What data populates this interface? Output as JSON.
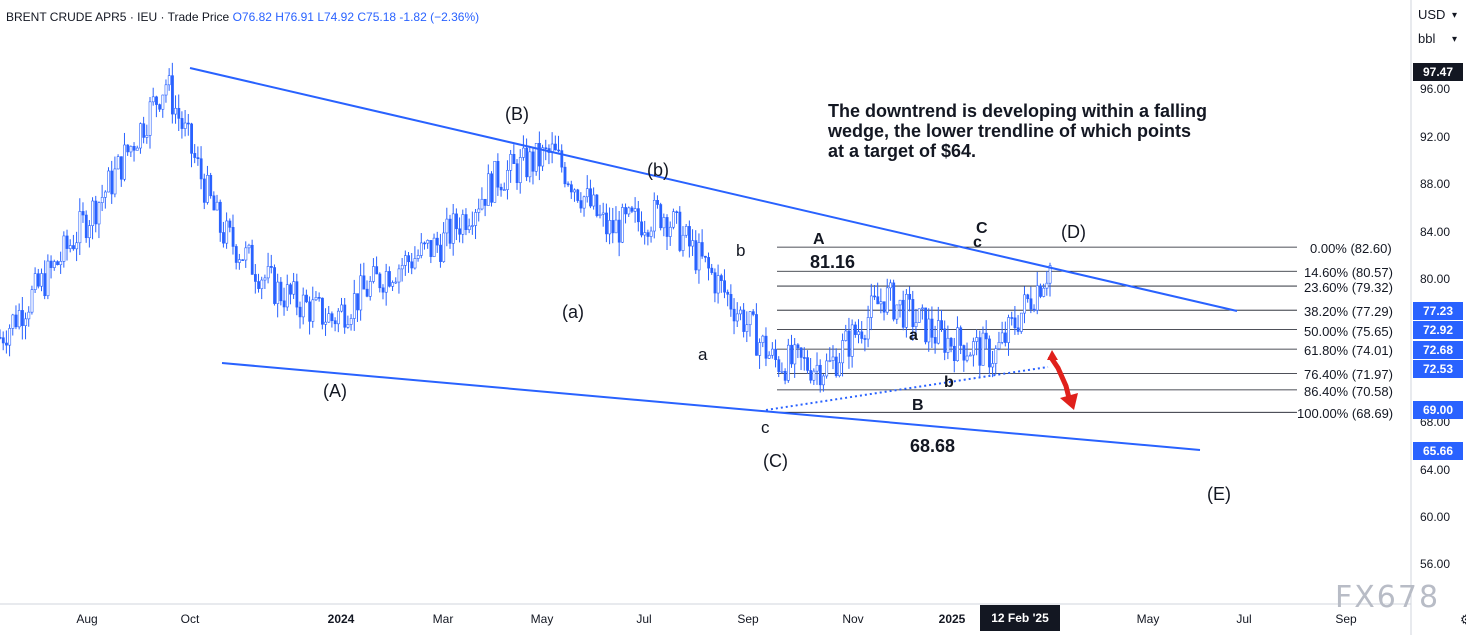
{
  "header": {
    "symbol": "BRENT CRUDE APR5",
    "exchange": "· IEU",
    "type": "· Trade Price",
    "open": "O76.82",
    "high": "H76.91",
    "low": "L74.92",
    "close": "C75.18",
    "change": "-1.82 (−2.36%)"
  },
  "price_axis": {
    "currency": "USD",
    "unit": "bbl",
    "ticks": [
      "96.00",
      "92.00",
      "88.00",
      "84.00",
      "80.00",
      "68.00",
      "64.00",
      "60.00",
      "56.00"
    ],
    "badges": [
      {
        "text": "97.47",
        "color": "#131722",
        "price": 97.47
      },
      {
        "text": "77.23",
        "color": "#2962ff",
        "price": 77.23
      },
      {
        "text": "72.92",
        "color": "#2962ff",
        "price": 75.65
      },
      {
        "text": "72.68",
        "color": "#2962ff",
        "price": 74.01
      },
      {
        "text": "72.53",
        "color": "#2962ff",
        "price": 72.7
      },
      {
        "text": "69.00",
        "color": "#2962ff",
        "price": 69.0
      },
      {
        "text": "65.66",
        "color": "#2962ff",
        "price": 65.66
      }
    ]
  },
  "time_axis": {
    "ticks": [
      "Aug",
      "Oct",
      "2024",
      "Mar",
      "May",
      "Jul",
      "Sep",
      "Nov",
      "2025",
      "Jul",
      "Sep"
    ],
    "tick_may2": "May",
    "cursor_date": "12 Feb '25"
  },
  "annotations": {
    "A_paren": "(A)",
    "B_paren": "(B)",
    "C_paren": "(C)",
    "D_paren": "(D)",
    "E_paren": "(E)",
    "a_paren": "(a)",
    "b_paren": "(b)",
    "a1": "a",
    "b1": "b",
    "c1": "c",
    "A_big": "A",
    "B_big": "B",
    "C_big": "C",
    "a2": "a",
    "b2": "b",
    "c2": "c",
    "high_label": "81.16",
    "low_label": "68.68"
  },
  "note": "The downtrend is developing within a falling wedge, the lower trendline of which points at a target of $64.",
  "fibonacci": [
    {
      "label": "0.00% (82.60)",
      "price": 82.6
    },
    {
      "label": "14.60% (80.57)",
      "price": 80.57
    },
    {
      "label": "23.60% (79.32)",
      "price": 79.32
    },
    {
      "label": "38.20% (77.29)",
      "price": 77.29
    },
    {
      "label": "50.00% (75.65)",
      "price": 75.65
    },
    {
      "label": "61.80% (74.01)",
      "price": 74.01
    },
    {
      "label": "76.40% (71.97)",
      "price": 71.97
    },
    {
      "label": "86.40% (70.58)",
      "price": 70.58
    },
    {
      "label": "100.00% (68.69)",
      "price": 68.69
    }
  ],
  "watermark": "FX678",
  "colors": {
    "trendline": "#2962ff",
    "candle": "#2962ff",
    "arrow": "#e0201b",
    "fib": "#131722"
  },
  "chart_data": {
    "type": "candlestick",
    "title": "BRENT CRUDE APR5 · IEU · Trade Price",
    "ylim": [
      53,
      99
    ],
    "series": [
      {
        "name": "close",
        "x": [
          "2023-07",
          "2023-08",
          "2023-09",
          "2023-10",
          "2023-11",
          "2023-12",
          "2024-01",
          "2024-02",
          "2024-03",
          "2024-04",
          "2024-05",
          "2024-06",
          "2024-07",
          "2024-08",
          "2024-09",
          "2024-10",
          "2024-11",
          "2024-12",
          "2025-01",
          "2025-02"
        ],
        "values": [
          75.0,
          81.0,
          88.0,
          96.5,
          84.0,
          79.0,
          76.5,
          80.5,
          83.0,
          88.5,
          90.5,
          84.0,
          85.5,
          79.5,
          73.0,
          72.5,
          78.5,
          75.0,
          73.5,
          81.0
        ]
      }
    ],
    "fib_levels": [
      82.6,
      80.57,
      79.32,
      77.29,
      75.65,
      74.01,
      71.97,
      70.58,
      68.69
    ]
  }
}
